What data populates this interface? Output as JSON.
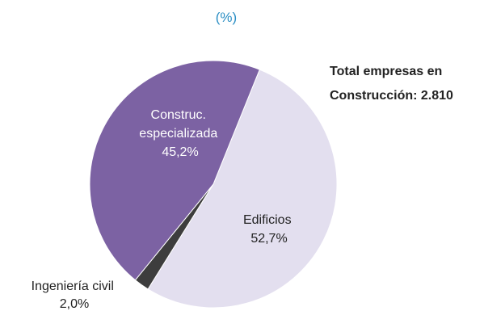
{
  "chart_data": {
    "type": "pie",
    "title_partial": "",
    "subtitle": "(%)",
    "total_note": {
      "line1": "Total empresas en",
      "line2": "Construcción: 2.810"
    },
    "slices": [
      {
        "name_lines": [
          "Edificios"
        ],
        "value_label": "52,7%",
        "value": 52.7,
        "color": "#e3dfef"
      },
      {
        "name_lines": [
          "Ingeniería civil"
        ],
        "value_label": "2,0%",
        "value": 2.0,
        "color": "#3d3d3d"
      },
      {
        "name_lines": [
          "Construc.",
          "especializada"
        ],
        "value_label": "45,2%",
        "value": 45.2,
        "color": "#7c62a3"
      }
    ],
    "start_angle_deg": 22,
    "direction": "clockwise"
  },
  "colors": {
    "title": "#2a8ec4",
    "text": "#222222",
    "slice_text_light": "#ffffff"
  }
}
